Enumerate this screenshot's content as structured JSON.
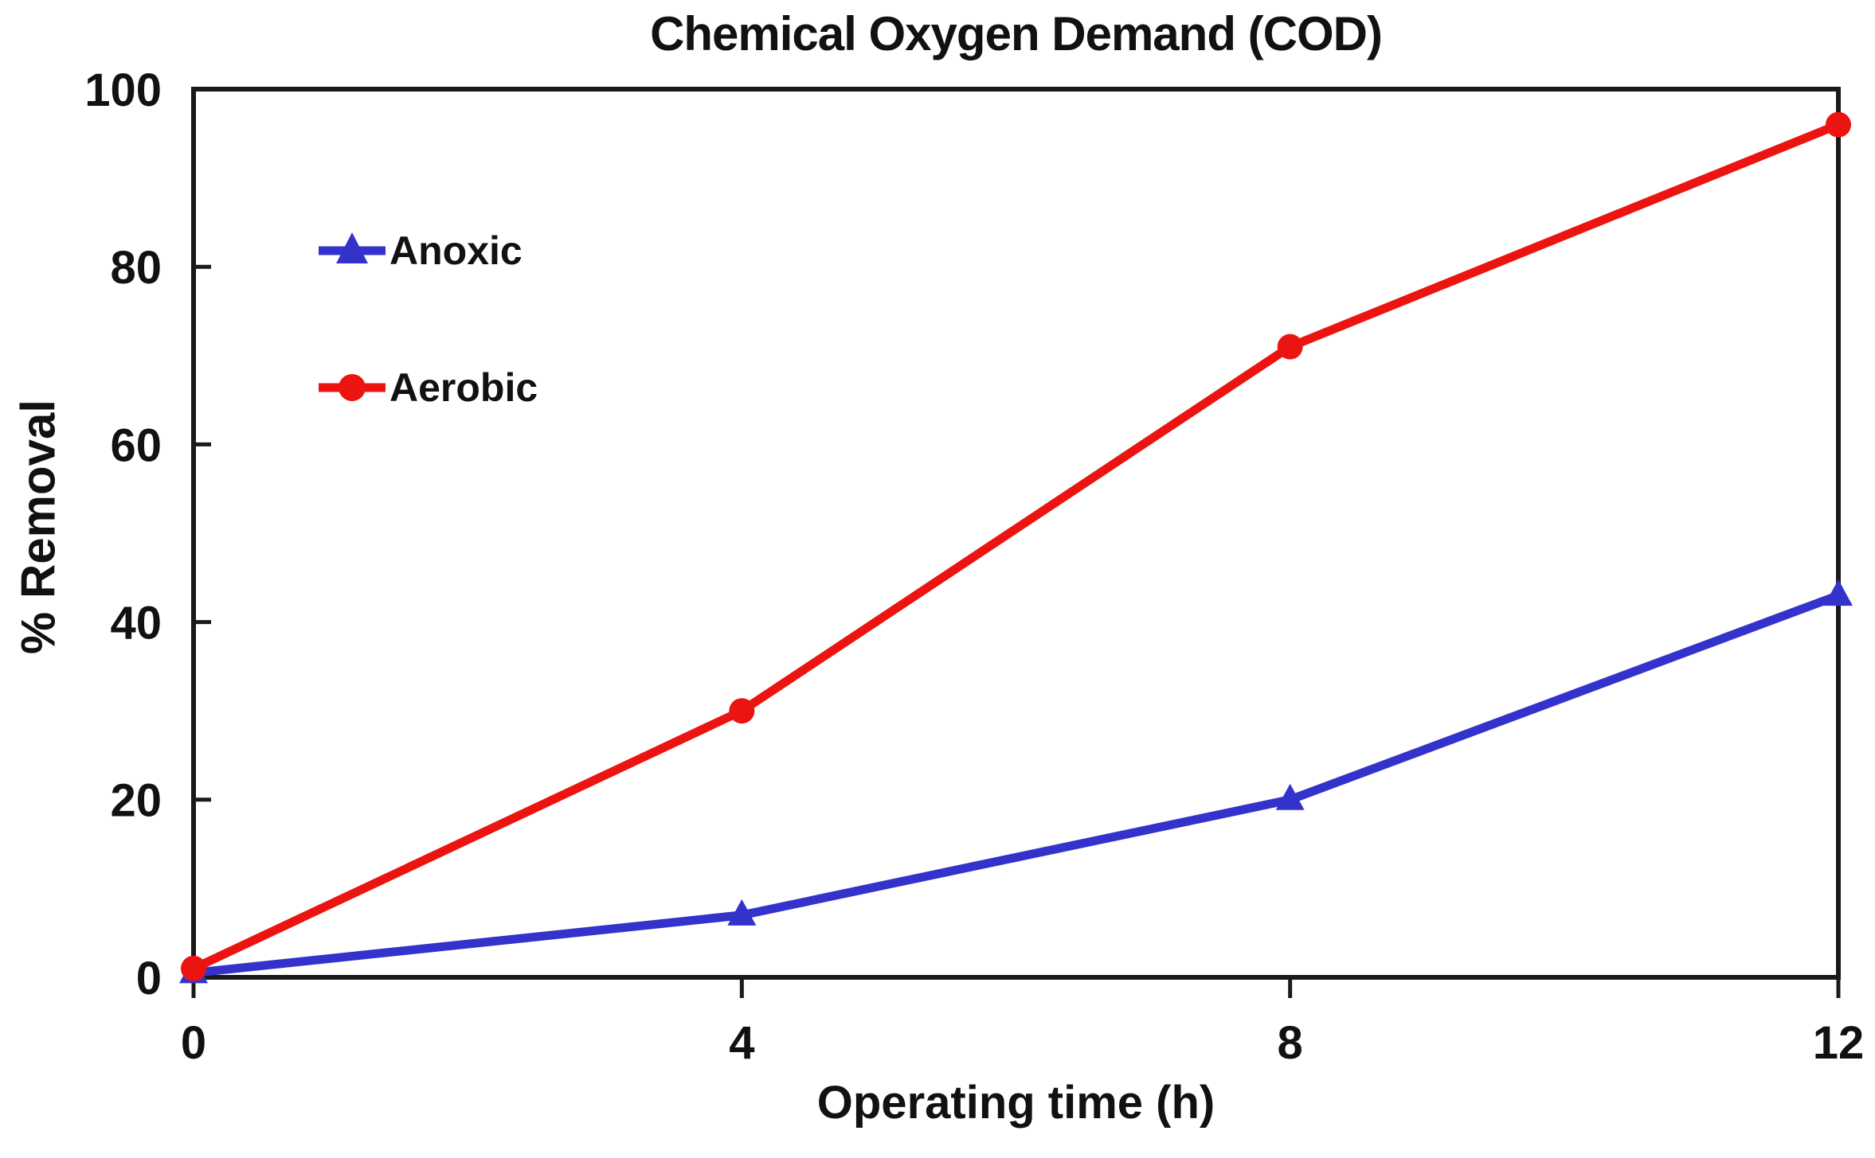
{
  "chart_data": {
    "type": "line",
    "title": "Chemical Oxygen Demand (COD)",
    "xlabel": "Operating time (h)",
    "ylabel": "% Removal",
    "x": [
      0,
      4,
      8,
      12
    ],
    "series": [
      {
        "name": "Anoxic",
        "values": [
          0.5,
          7,
          20,
          43
        ],
        "color": "#3333CC",
        "marker": "triangle"
      },
      {
        "name": "Aerobic",
        "values": [
          1,
          30,
          71,
          96
        ],
        "color": "#EC1410",
        "marker": "circle"
      }
    ],
    "xlim": [
      0,
      12
    ],
    "ylim": [
      0,
      100
    ],
    "x_ticks": [
      0,
      4,
      8,
      12
    ],
    "y_ticks": [
      0,
      20,
      40,
      60,
      80,
      100
    ],
    "grid": false,
    "legend_position": "upper-left-inside",
    "plot_border": true,
    "axis_color": "#1a1a1a",
    "text_color": "#111111",
    "background_color": "#ffffff"
  }
}
